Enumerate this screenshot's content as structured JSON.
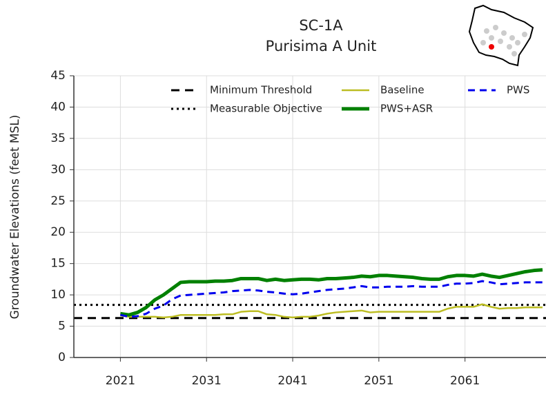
{
  "chart_data": {
    "type": "line",
    "title": [
      "SC-1A",
      "Purisima A Unit"
    ],
    "y_label": "Groundwater Elevations (feet MSL)",
    "x": [
      2021,
      2022,
      2023,
      2024,
      2025,
      2026,
      2027,
      2028,
      2029,
      2030,
      2031,
      2032,
      2033,
      2034,
      2035,
      2036,
      2037,
      2038,
      2039,
      2040,
      2041,
      2042,
      2043,
      2044,
      2045,
      2046,
      2047,
      2048,
      2049,
      2050,
      2051,
      2052,
      2053,
      2054,
      2055,
      2056,
      2057,
      2058,
      2059,
      2060,
      2061,
      2062,
      2063,
      2064,
      2065,
      2066,
      2067,
      2068,
      2069,
      2070
    ],
    "series": [
      {
        "name": "Baseline",
        "color": "#bcbd22",
        "values": [
          6.7,
          6.5,
          6.5,
          6.5,
          6.5,
          6.4,
          6.5,
          6.8,
          6.8,
          6.8,
          6.8,
          6.8,
          6.9,
          6.9,
          7.3,
          7.4,
          7.4,
          6.9,
          6.8,
          6.5,
          6.4,
          6.5,
          6.5,
          6.7,
          7.0,
          7.2,
          7.3,
          7.4,
          7.5,
          7.2,
          7.3,
          7.3,
          7.3,
          7.3,
          7.3,
          7.3,
          7.3,
          7.3,
          7.8,
          8.1,
          8.1,
          8.1,
          8.5,
          8.1,
          7.8,
          7.9,
          7.9,
          8.0,
          8.0,
          8.0
        ]
      },
      {
        "name": "PWS+ASR",
        "color": "#008000",
        "values": [
          7.0,
          6.8,
          7.2,
          8.0,
          9.2,
          10.0,
          11.0,
          12.0,
          12.1,
          12.1,
          12.1,
          12.2,
          12.2,
          12.3,
          12.6,
          12.6,
          12.6,
          12.3,
          12.5,
          12.3,
          12.4,
          12.5,
          12.5,
          12.4,
          12.6,
          12.6,
          12.7,
          12.8,
          13.0,
          12.9,
          13.1,
          13.1,
          13.0,
          12.9,
          12.8,
          12.6,
          12.5,
          12.5,
          12.9,
          13.1,
          13.1,
          13.0,
          13.3,
          13.0,
          12.8,
          13.1,
          13.4,
          13.7,
          13.9,
          14.0
        ]
      },
      {
        "name": "PWS",
        "color": "#0000ee",
        "values": [
          6.8,
          6.5,
          6.6,
          7.0,
          7.8,
          8.3,
          9.3,
          9.9,
          10.0,
          10.1,
          10.2,
          10.3,
          10.4,
          10.6,
          10.7,
          10.8,
          10.7,
          10.5,
          10.4,
          10.2,
          10.1,
          10.2,
          10.4,
          10.6,
          10.8,
          10.9,
          11.0,
          11.2,
          11.4,
          11.2,
          11.2,
          11.3,
          11.3,
          11.3,
          11.4,
          11.3,
          11.3,
          11.3,
          11.6,
          11.8,
          11.8,
          11.9,
          12.2,
          12.0,
          11.7,
          11.8,
          11.9,
          12.0,
          12.0,
          12.0
        ]
      }
    ],
    "reference_lines": [
      {
        "name": "Minimum Threshold",
        "value": 6.3,
        "color": "#000000",
        "style": "dashed"
      },
      {
        "name": "Measurable Objective",
        "value": 8.4,
        "color": "#000000",
        "style": "dotted"
      }
    ],
    "xlim": [
      2015.6,
      2070.4
    ],
    "xticks": [
      2021,
      2031,
      2041,
      2051,
      2061
    ],
    "ylim": [
      0,
      45
    ],
    "yticks": [
      0,
      5,
      10,
      15,
      20,
      25,
      30,
      35,
      40,
      45
    ],
    "grid": true
  }
}
